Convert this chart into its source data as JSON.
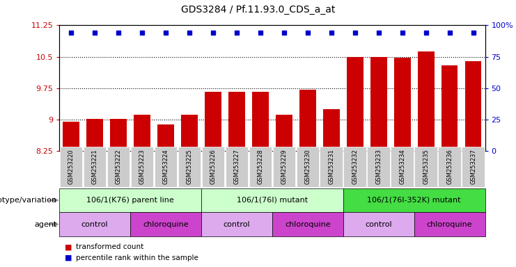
{
  "title": "GDS3284 / Pf.11.93.0_CDS_a_at",
  "samples": [
    "GSM253220",
    "GSM253221",
    "GSM253222",
    "GSM253223",
    "GSM253224",
    "GSM253225",
    "GSM253226",
    "GSM253227",
    "GSM253228",
    "GSM253229",
    "GSM253230",
    "GSM253231",
    "GSM253232",
    "GSM253233",
    "GSM253234",
    "GSM253235",
    "GSM253236",
    "GSM253237"
  ],
  "bar_values": [
    8.95,
    9.02,
    9.02,
    9.12,
    8.88,
    9.12,
    9.67,
    9.67,
    9.67,
    9.12,
    9.72,
    9.25,
    10.5,
    10.5,
    10.48,
    10.62,
    10.3,
    10.4
  ],
  "percentile_values": [
    100,
    100,
    100,
    100,
    100,
    100,
    100,
    100,
    100,
    100,
    100,
    100,
    100,
    100,
    100,
    100,
    100,
    100
  ],
  "bar_color": "#cc0000",
  "percentile_color": "#0000cc",
  "ylim_left": [
    8.25,
    11.25
  ],
  "ylim_right": [
    0,
    100
  ],
  "yticks_left": [
    8.25,
    9.0,
    9.75,
    10.5,
    11.25
  ],
  "yticks_right": [
    0,
    25,
    50,
    75,
    100
  ],
  "ytick_labels_left": [
    "8.25",
    "9",
    "9.75",
    "10.5",
    "11.25"
  ],
  "ytick_labels_right": [
    "0",
    "25",
    "50",
    "75",
    "100%"
  ],
  "hlines": [
    9.0,
    9.75,
    10.5
  ],
  "genotype_groups": [
    {
      "label": "106/1(K76) parent line",
      "start": 0,
      "end": 5,
      "color": "#ccffcc"
    },
    {
      "label": "106/1(76I) mutant",
      "start": 6,
      "end": 11,
      "color": "#ccffcc"
    },
    {
      "label": "106/1(76I-352K) mutant",
      "start": 12,
      "end": 17,
      "color": "#44dd44"
    }
  ],
  "agent_groups": [
    {
      "label": "control",
      "start": 0,
      "end": 2,
      "color": "#ddaaee"
    },
    {
      "label": "chloroquine",
      "start": 3,
      "end": 5,
      "color": "#cc44cc"
    },
    {
      "label": "control",
      "start": 6,
      "end": 8,
      "color": "#ddaaee"
    },
    {
      "label": "chloroquine",
      "start": 9,
      "end": 11,
      "color": "#cc44cc"
    },
    {
      "label": "control",
      "start": 12,
      "end": 14,
      "color": "#ddaaee"
    },
    {
      "label": "chloroquine",
      "start": 15,
      "end": 17,
      "color": "#cc44cc"
    }
  ],
  "genotype_label": "genotype/variation",
  "agent_label": "agent",
  "legend_items": [
    {
      "label": "transformed count",
      "color": "#cc0000"
    },
    {
      "label": "percentile rank within the sample",
      "color": "#0000cc"
    }
  ],
  "background_color": "#ffffff",
  "bar_width": 0.7,
  "xtick_bg_color": "#cccccc"
}
